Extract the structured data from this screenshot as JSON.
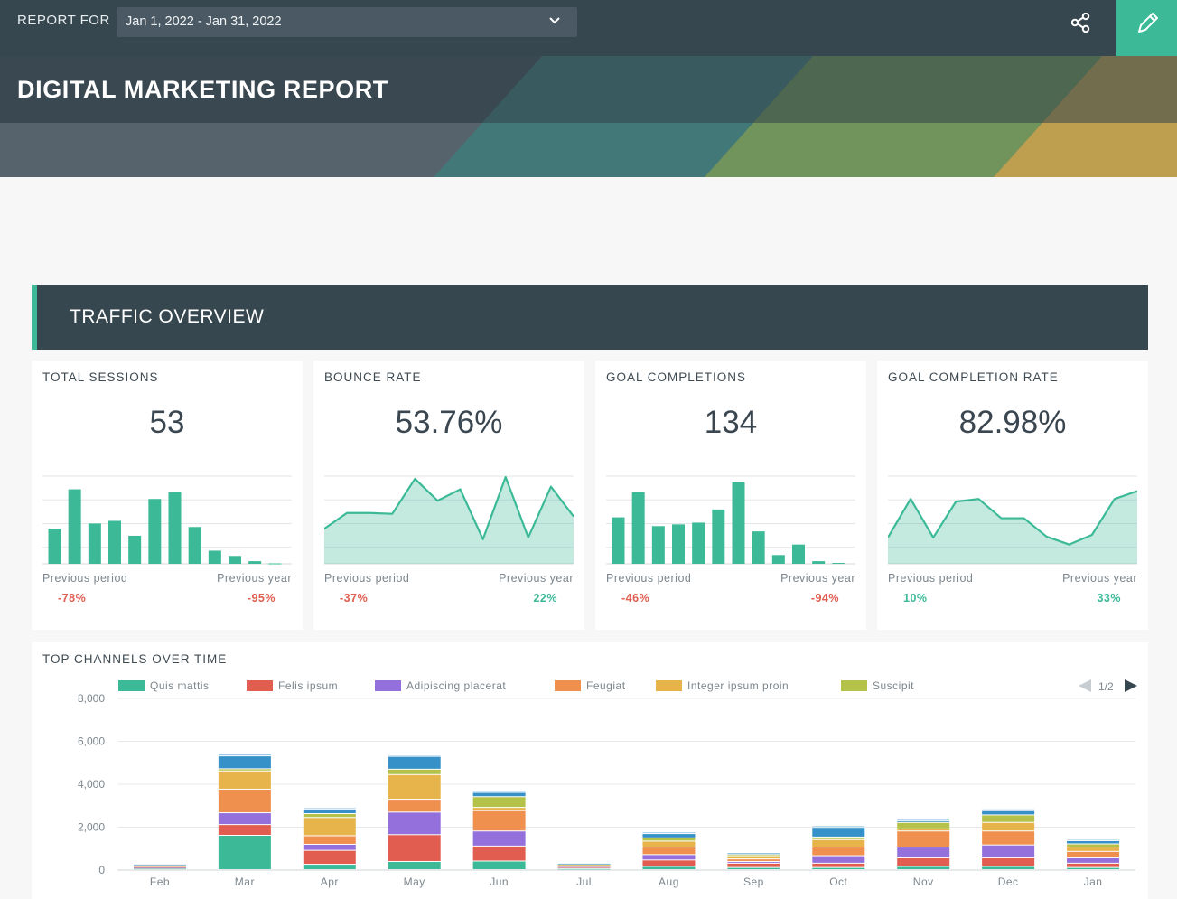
{
  "topbar": {
    "report_for_label": "REPORT FOR",
    "date_range": "Jan 1, 2022 - Jan 31, 2022",
    "share_icon": "share-icon",
    "edit_icon": "pencil-icon"
  },
  "report_title": "DIGITAL MARKETING REPORT",
  "section_title": "TRAFFIC OVERVIEW",
  "colors": {
    "accent": "#3cba97",
    "negative": "#e05d4f",
    "header_dark": "#37474f"
  },
  "kpis": [
    {
      "title": "TOTAL SESSIONS",
      "value": "53",
      "spark_type": "bar",
      "spark": [
        4,
        8.5,
        4.6,
        4.9,
        3.2,
        7.4,
        8.2,
        4.2,
        1.5,
        0.9,
        0.3,
        0.05
      ],
      "prev_period_label": "Previous period",
      "prev_period_value": "-78%",
      "prev_period_dir": "neg",
      "prev_year_label": "Previous year",
      "prev_year_value": "-95%",
      "prev_year_dir": "neg"
    },
    {
      "title": "BOUNCE RATE",
      "value": "53.76%",
      "spark_type": "area",
      "spark": [
        4,
        5.8,
        5.8,
        5.7,
        9.7,
        7.2,
        8.5,
        2.8,
        9.9,
        3.0,
        8.8,
        5.4
      ],
      "prev_period_label": "Previous period",
      "prev_period_value": "-37%",
      "prev_period_dir": "neg",
      "prev_year_label": "Previous year",
      "prev_year_value": "22%",
      "prev_year_dir": "pos"
    },
    {
      "title": "GOAL COMPLETIONS",
      "value": "134",
      "spark_type": "bar",
      "spark": [
        5.3,
        8.2,
        4.3,
        4.5,
        4.7,
        6.2,
        9.3,
        3.7,
        1.0,
        2.2,
        0.3,
        0.1
      ],
      "prev_period_label": "Previous period",
      "prev_period_value": "-46%",
      "prev_period_dir": "neg",
      "prev_year_label": "Previous year",
      "prev_year_value": "-94%",
      "prev_year_dir": "neg"
    },
    {
      "title": "GOAL COMPLETION RATE",
      "value": "82.98%",
      "spark_type": "area",
      "spark": [
        3.0,
        7.4,
        3.0,
        7.1,
        7.4,
        5.2,
        5.2,
        3.1,
        2.2,
        3.3,
        7.4,
        8.3
      ],
      "prev_period_label": "Previous period",
      "prev_period_value": "10%",
      "prev_period_dir": "pos",
      "prev_year_label": "Previous year",
      "prev_year_value": "33%",
      "prev_year_dir": "pos"
    }
  ],
  "chart_data": {
    "type": "bar",
    "stacked": true,
    "title": "TOP CHANNELS OVER TIME",
    "categories": [
      "Feb",
      "Mar",
      "Apr",
      "May",
      "Jun",
      "Jul",
      "Aug",
      "Sep",
      "Oct",
      "Nov",
      "Dec",
      "Jan"
    ],
    "ylim": [
      0,
      8000
    ],
    "yticks": [
      "0",
      "2,000",
      "4,000",
      "6,000",
      "8,000"
    ],
    "grid": true,
    "legend_position": "top",
    "pager": "1/2",
    "series": [
      {
        "name": "Quis mattis",
        "color": "#3cba97",
        "values": [
          60,
          1600,
          250,
          380,
          400,
          50,
          150,
          100,
          100,
          150,
          150,
          100
        ]
      },
      {
        "name": "Felis ipsum",
        "color": "#e05d4f",
        "values": [
          40,
          500,
          650,
          1250,
          700,
          60,
          300,
          200,
          200,
          400,
          400,
          200
        ]
      },
      {
        "name": "Adipiscing placerat",
        "color": "#9370db",
        "values": [
          20,
          550,
          280,
          1050,
          700,
          30,
          250,
          80,
          350,
          500,
          600,
          250
        ]
      },
      {
        "name": "Feugiat",
        "color": "#f0904f",
        "values": [
          30,
          1100,
          400,
          600,
          950,
          40,
          350,
          120,
          400,
          750,
          650,
          300
        ]
      },
      {
        "name": "Integer ipsum proin",
        "color": "#e6b44a",
        "values": [
          40,
          850,
          850,
          1150,
          150,
          50,
          280,
          150,
          350,
          100,
          400,
          200
        ]
      },
      {
        "name": "Suscipit",
        "color": "#b5c24a",
        "values": [
          30,
          100,
          180,
          250,
          500,
          30,
          150,
          70,
          120,
          300,
          350,
          150
        ]
      },
      {
        "name": "",
        "color": "#3691c8",
        "values": [
          20,
          600,
          200,
          600,
          200,
          20,
          200,
          50,
          450,
          80,
          200,
          150
        ]
      },
      {
        "name": "",
        "color": "#9ec9e6",
        "values": [
          20,
          100,
          80,
          60,
          80,
          20,
          80,
          30,
          80,
          70,
          80,
          60
        ]
      }
    ]
  }
}
